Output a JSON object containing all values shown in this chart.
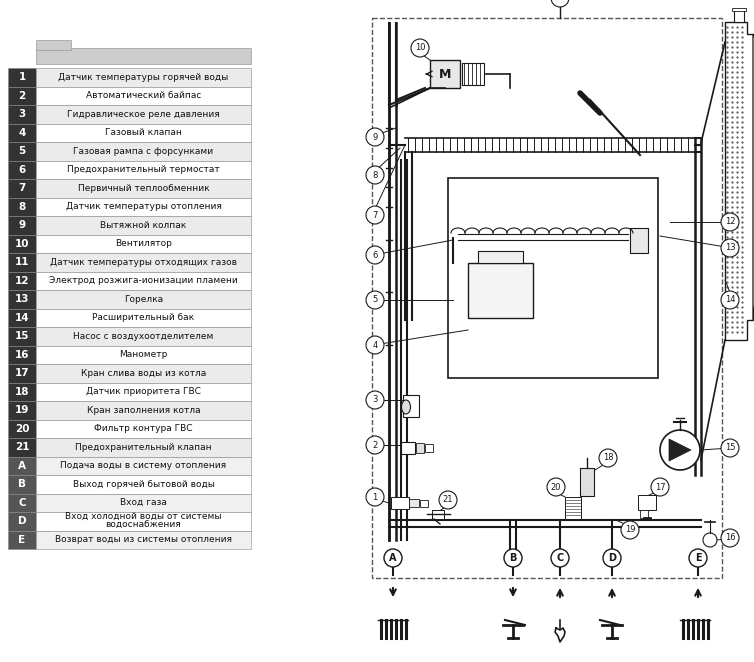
{
  "table_items": [
    {
      "num": "1",
      "text": "Датчик температуры горячей воды"
    },
    {
      "num": "2",
      "text": "Автоматический байпас"
    },
    {
      "num": "3",
      "text": "Гидравлическое реле давления"
    },
    {
      "num": "4",
      "text": "Газовый клапан"
    },
    {
      "num": "5",
      "text": "Газовая рампа с форсунками"
    },
    {
      "num": "6",
      "text": "Предохранительный термостат"
    },
    {
      "num": "7",
      "text": "Первичный теплообменник"
    },
    {
      "num": "8",
      "text": "Датчик температуры отопления"
    },
    {
      "num": "9",
      "text": "Вытяжной колпак"
    },
    {
      "num": "10",
      "text": "Вентилятор"
    },
    {
      "num": "11",
      "text": "Датчик температуры отходящих газов"
    },
    {
      "num": "12",
      "text": "Электрод розжига-ионизации пламени"
    },
    {
      "num": "13",
      "text": "Горелка"
    },
    {
      "num": "14",
      "text": "Расширительный бак"
    },
    {
      "num": "15",
      "text": "Насос с воздухоотделителем"
    },
    {
      "num": "16",
      "text": "Манометр"
    },
    {
      "num": "17",
      "text": "Кран слива воды из котла"
    },
    {
      "num": "18",
      "text": "Датчик приоритета ГВС"
    },
    {
      "num": "19",
      "text": "Кран заполнения котла"
    },
    {
      "num": "20",
      "text": "Фильтр контура ГВС"
    },
    {
      "num": "21",
      "text": "Предохранительный клапан"
    },
    {
      "num": "A",
      "text": "Подача воды в систему отопления"
    },
    {
      "num": "B",
      "text": "Выход горячей бытовой воды"
    },
    {
      "num": "C",
      "text": "Вход газа"
    },
    {
      "num": "D",
      "text": "Вход холодной воды от системы\nводоснабжения"
    },
    {
      "num": "E",
      "text": "Возврат воды из системы отопления"
    }
  ],
  "bg_color": "#ffffff",
  "line_color": "#1a1a1a"
}
